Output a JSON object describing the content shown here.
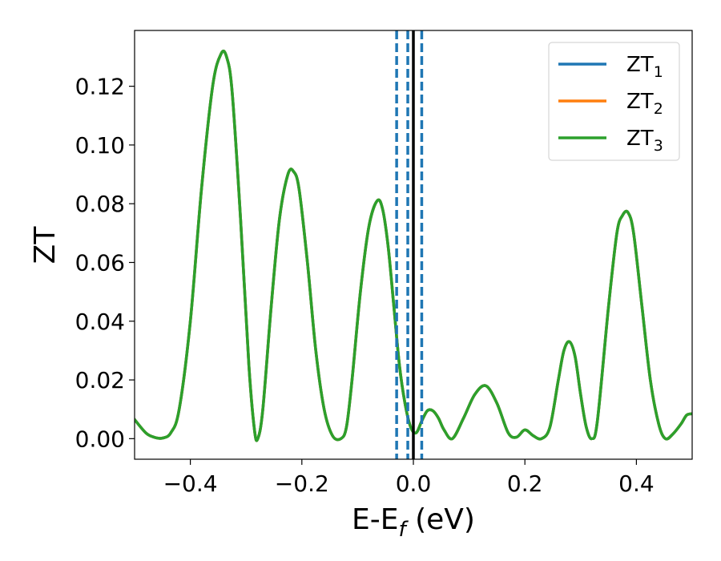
{
  "chart_data": {
    "type": "line",
    "title": "",
    "xlabel": {
      "main": "E-E",
      "sub": "f",
      "suffix": " (eV)"
    },
    "ylabel": "ZT",
    "xlim": [
      -0.5,
      0.5
    ],
    "ylim": [
      -0.007,
      0.139
    ],
    "xticks": [
      -0.4,
      -0.2,
      0.0,
      0.2,
      0.4
    ],
    "xtick_labels": [
      "−0.4",
      "−0.2",
      "0.0",
      "0.2",
      "0.4"
    ],
    "yticks": [
      0.0,
      0.02,
      0.04,
      0.06,
      0.08,
      0.1,
      0.12
    ],
    "ytick_labels": [
      "0.00",
      "0.02",
      "0.04",
      "0.06",
      "0.08",
      "0.10",
      "0.12"
    ],
    "grid": false,
    "legend_position": "top-right",
    "vlines": [
      {
        "x": -0.03,
        "style": "dashed",
        "color": "#1f77b4"
      },
      {
        "x": -0.01,
        "style": "dashed",
        "color": "#1f77b4"
      },
      {
        "x": 0.0,
        "style": "solid",
        "color": "#000000"
      },
      {
        "x": 0.015,
        "style": "dashed",
        "color": "#1f77b4"
      }
    ],
    "x": [
      -0.5,
      -0.48,
      -0.465,
      -0.45,
      -0.435,
      -0.42,
      -0.4,
      -0.38,
      -0.36,
      -0.345,
      -0.335,
      -0.325,
      -0.31,
      -0.295,
      -0.285,
      -0.279,
      -0.27,
      -0.255,
      -0.24,
      -0.225,
      -0.215,
      -0.205,
      -0.19,
      -0.175,
      -0.16,
      -0.145,
      -0.13,
      -0.12,
      -0.11,
      -0.095,
      -0.08,
      -0.065,
      -0.055,
      -0.045,
      -0.035,
      -0.025,
      -0.015,
      -0.005,
      0.005,
      0.015,
      0.025,
      0.035,
      0.045,
      0.055,
      0.07,
      0.09,
      0.11,
      0.13,
      0.15,
      0.17,
      0.185,
      0.2,
      0.215,
      0.23,
      0.245,
      0.26,
      0.27,
      0.28,
      0.29,
      0.3,
      0.31,
      0.32,
      0.33,
      0.35,
      0.365,
      0.375,
      0.385,
      0.395,
      0.41,
      0.425,
      0.44,
      0.452,
      0.465,
      0.48,
      0.49,
      0.5
    ],
    "series": [
      {
        "name": "ZT",
        "name_sub": "1",
        "color": "#1f77b4",
        "values": [
          0.0065,
          0.002,
          0.0005,
          0.0002,
          0.002,
          0.01,
          0.04,
          0.085,
          0.12,
          0.131,
          0.13,
          0.118,
          0.075,
          0.025,
          0.003,
          0.0,
          0.01,
          0.045,
          0.075,
          0.09,
          0.091,
          0.085,
          0.06,
          0.03,
          0.01,
          0.001,
          0.0,
          0.004,
          0.02,
          0.05,
          0.072,
          0.081,
          0.078,
          0.065,
          0.045,
          0.025,
          0.012,
          0.004,
          0.002,
          0.006,
          0.0095,
          0.0095,
          0.007,
          0.003,
          0.0,
          0.007,
          0.015,
          0.018,
          0.012,
          0.002,
          0.0005,
          0.003,
          0.001,
          0.0,
          0.004,
          0.02,
          0.03,
          0.033,
          0.028,
          0.015,
          0.004,
          0.0,
          0.006,
          0.045,
          0.07,
          0.076,
          0.077,
          0.07,
          0.045,
          0.02,
          0.005,
          0.0,
          0.0015,
          0.005,
          0.008,
          0.0085
        ]
      },
      {
        "name": "ZT",
        "name_sub": "2",
        "color": "#ff7f0e",
        "values": [
          0.0065,
          0.002,
          0.0005,
          0.0002,
          0.002,
          0.01,
          0.04,
          0.085,
          0.12,
          0.131,
          0.13,
          0.118,
          0.075,
          0.025,
          0.003,
          0.0,
          0.01,
          0.045,
          0.075,
          0.09,
          0.091,
          0.085,
          0.06,
          0.03,
          0.01,
          0.001,
          0.0,
          0.004,
          0.02,
          0.05,
          0.072,
          0.081,
          0.078,
          0.065,
          0.045,
          0.025,
          0.012,
          0.004,
          0.002,
          0.006,
          0.0095,
          0.0095,
          0.007,
          0.003,
          0.0,
          0.007,
          0.015,
          0.018,
          0.012,
          0.002,
          0.0005,
          0.003,
          0.001,
          0.0,
          0.004,
          0.02,
          0.03,
          0.033,
          0.028,
          0.015,
          0.004,
          0.0,
          0.006,
          0.045,
          0.07,
          0.076,
          0.077,
          0.07,
          0.045,
          0.02,
          0.005,
          0.0,
          0.0015,
          0.005,
          0.008,
          0.0085
        ]
      },
      {
        "name": "ZT",
        "name_sub": "3",
        "color": "#2ca02c",
        "values": [
          0.0065,
          0.002,
          0.0005,
          0.0002,
          0.002,
          0.01,
          0.04,
          0.085,
          0.12,
          0.131,
          0.13,
          0.118,
          0.075,
          0.025,
          0.003,
          0.0,
          0.01,
          0.045,
          0.075,
          0.09,
          0.091,
          0.085,
          0.06,
          0.03,
          0.01,
          0.001,
          0.0,
          0.004,
          0.02,
          0.05,
          0.072,
          0.081,
          0.078,
          0.065,
          0.045,
          0.025,
          0.012,
          0.004,
          0.002,
          0.006,
          0.0095,
          0.0095,
          0.007,
          0.003,
          0.0,
          0.007,
          0.015,
          0.018,
          0.012,
          0.002,
          0.0005,
          0.003,
          0.001,
          0.0,
          0.004,
          0.02,
          0.03,
          0.033,
          0.028,
          0.015,
          0.004,
          0.0,
          0.006,
          0.045,
          0.07,
          0.076,
          0.077,
          0.07,
          0.045,
          0.02,
          0.005,
          0.0,
          0.0015,
          0.005,
          0.008,
          0.0085
        ]
      }
    ]
  }
}
